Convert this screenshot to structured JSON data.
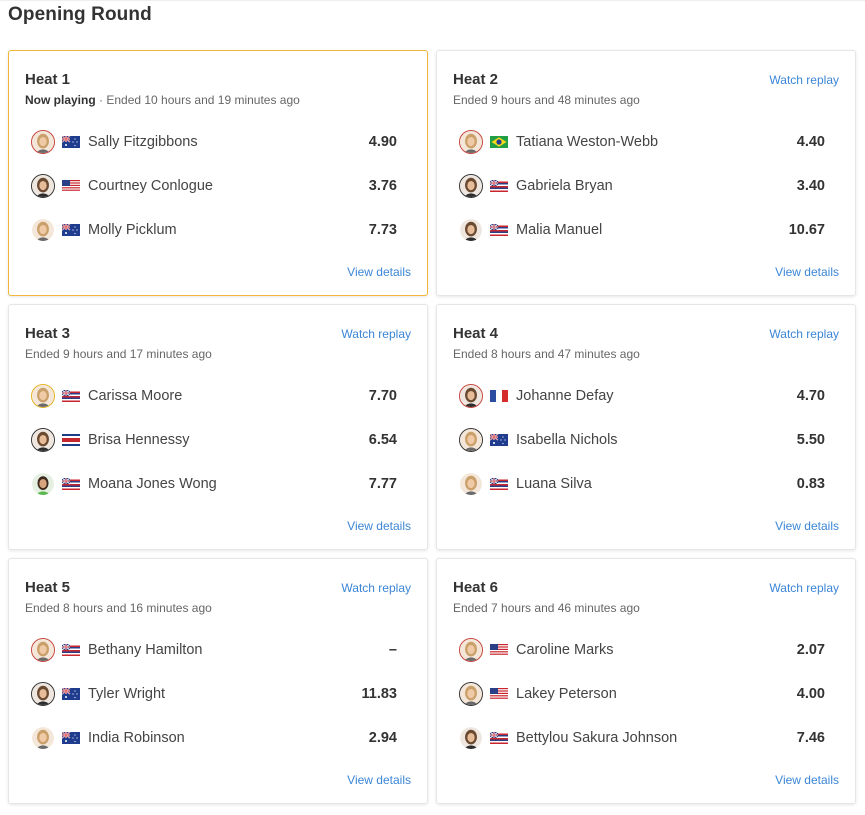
{
  "page": {
    "title": "Opening Round"
  },
  "heats": [
    {
      "title": "Heat 1",
      "now_playing": "Now playing",
      "separator": " · ",
      "status": "Ended 10 hours and 19 minutes ago",
      "watch_replay": "",
      "view_details": "View details",
      "surfers": [
        {
          "name": "Sally Fitzgibbons",
          "score": "4.90",
          "flag": "AUS"
        },
        {
          "name": "Courtney Conlogue",
          "score": "3.76",
          "flag": "USA"
        },
        {
          "name": "Molly Picklum",
          "score": "7.73",
          "flag": "AUS"
        }
      ]
    },
    {
      "title": "Heat 2",
      "status": "Ended 9 hours and 48 minutes ago",
      "watch_replay": "Watch replay",
      "view_details": "View details",
      "surfers": [
        {
          "name": "Tatiana Weston-Webb",
          "score": "4.40",
          "flag": "BRA"
        },
        {
          "name": "Gabriela Bryan",
          "score": "3.40",
          "flag": "HAW"
        },
        {
          "name": "Malia Manuel",
          "score": "10.67",
          "flag": "HAW"
        }
      ]
    },
    {
      "title": "Heat 3",
      "status": "Ended 9 hours and 17 minutes ago",
      "watch_replay": "Watch replay",
      "view_details": "View details",
      "surfers": [
        {
          "name": "Carissa Moore",
          "score": "7.70",
          "flag": "HAW"
        },
        {
          "name": "Brisa Hennessy",
          "score": "6.54",
          "flag": "CRC"
        },
        {
          "name": "Moana Jones Wong",
          "score": "7.77",
          "flag": "HAW"
        }
      ]
    },
    {
      "title": "Heat 4",
      "status": "Ended 8 hours and 47 minutes ago",
      "watch_replay": "Watch replay",
      "view_details": "View details",
      "surfers": [
        {
          "name": "Johanne Defay",
          "score": "4.70",
          "flag": "FRA"
        },
        {
          "name": "Isabella Nichols",
          "score": "5.50",
          "flag": "AUS"
        },
        {
          "name": "Luana Silva",
          "score": "0.83",
          "flag": "HAW"
        }
      ]
    },
    {
      "title": "Heat 5",
      "status": "Ended 8 hours and 16 minutes ago",
      "watch_replay": "Watch replay",
      "view_details": "View details",
      "surfers": [
        {
          "name": "Bethany Hamilton",
          "score": "–",
          "flag": "HAW"
        },
        {
          "name": "Tyler Wright",
          "score": "11.83",
          "flag": "AUS"
        },
        {
          "name": "India Robinson",
          "score": "2.94",
          "flag": "AUS"
        }
      ]
    },
    {
      "title": "Heat 6",
      "status": "Ended 7 hours and 46 minutes ago",
      "watch_replay": "Watch replay",
      "view_details": "View details",
      "surfers": [
        {
          "name": "Caroline Marks",
          "score": "2.07",
          "flag": "USA"
        },
        {
          "name": "Lakey Peterson",
          "score": "4.00",
          "flag": "USA"
        },
        {
          "name": "Bettylou Sakura Johnson",
          "score": "7.46",
          "flag": "HAW"
        }
      ]
    }
  ],
  "colors": {
    "accent_link": "#3b86d6",
    "active_border": "#f0b73c",
    "avatar_ring": "#c6453c",
    "leader_ring": "#e3b324"
  }
}
